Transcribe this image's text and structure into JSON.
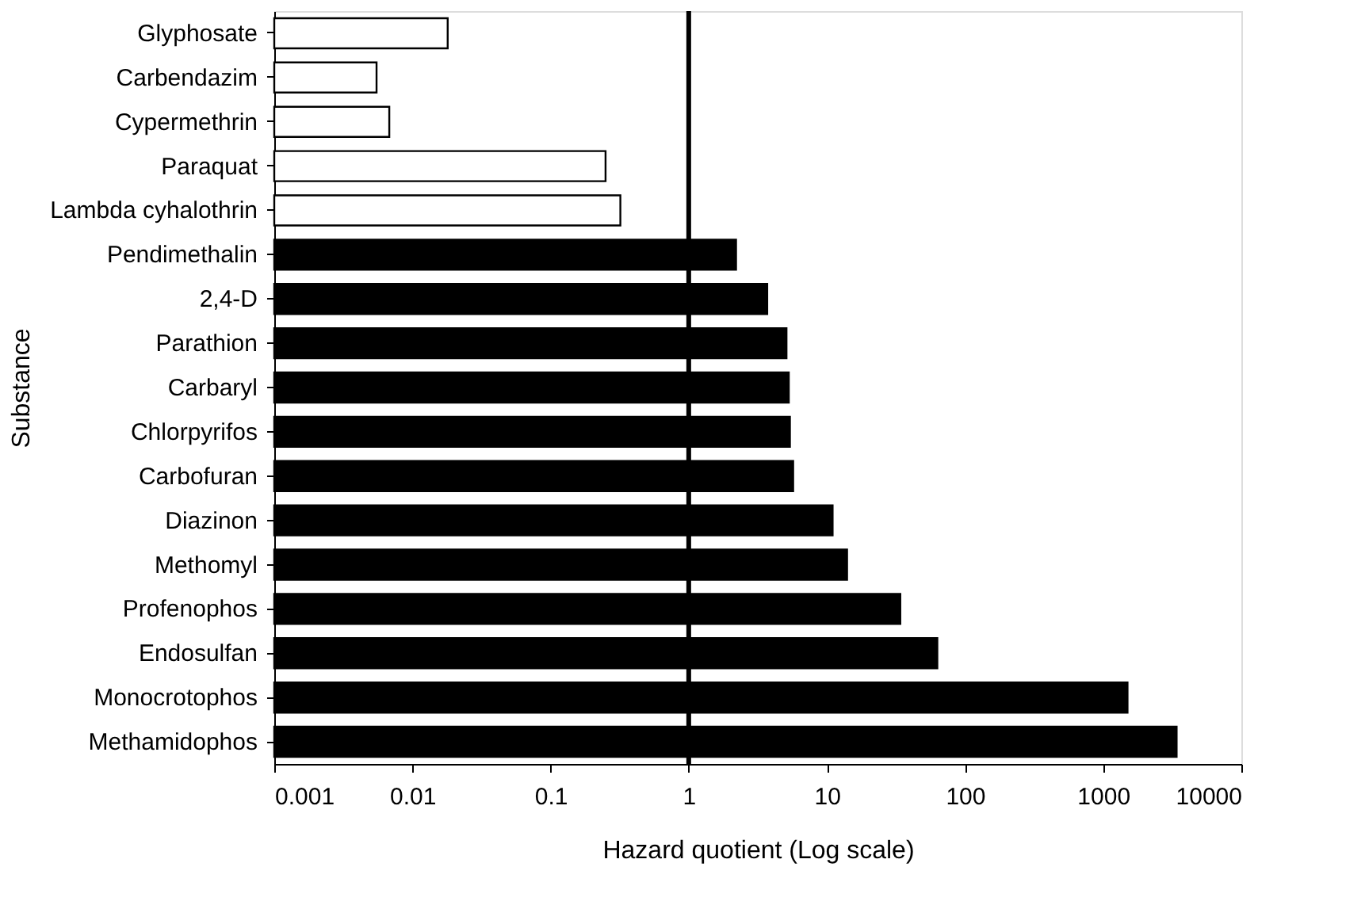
{
  "chart_data": {
    "type": "bar",
    "orientation": "horizontal",
    "xlabel": "Hazard quotient (Log scale)",
    "ylabel": "Substance",
    "categories": [
      "Glyphosate",
      "Carbendazim",
      "Cypermethrin",
      "Paraquat",
      "Lambda cyhalothrin",
      "Pendimethalin",
      "2,4-D",
      "Parathion",
      "Carbaryl",
      "Chlorpyrifos",
      "Carbofuran",
      "Diazinon",
      "Methomyl",
      "Profenophos",
      "Endosulfan",
      "Monocrotophos",
      "Methamidophos"
    ],
    "values": [
      0.018,
      0.0055,
      0.0068,
      0.25,
      0.32,
      2.2,
      3.7,
      5.1,
      5.3,
      5.4,
      5.7,
      11,
      14,
      34,
      63,
      1500,
      3400
    ],
    "colors": [
      "#ffffff",
      "#ffffff",
      "#ffffff",
      "#ffffff",
      "#ffffff",
      "#000000",
      "#000000",
      "#000000",
      "#000000",
      "#000000",
      "#000000",
      "#000000",
      "#000000",
      "#000000",
      "#000000",
      "#000000",
      "#000000"
    ],
    "log": "x",
    "xlim": [
      0.001,
      10000
    ],
    "xticks": [
      0.001,
      0.01,
      0.1,
      1,
      10,
      100,
      1000,
      10000
    ],
    "ref_lines": [
      {
        "axis": "x",
        "value": 1,
        "color": "#000000"
      }
    ],
    "grid": false
  }
}
